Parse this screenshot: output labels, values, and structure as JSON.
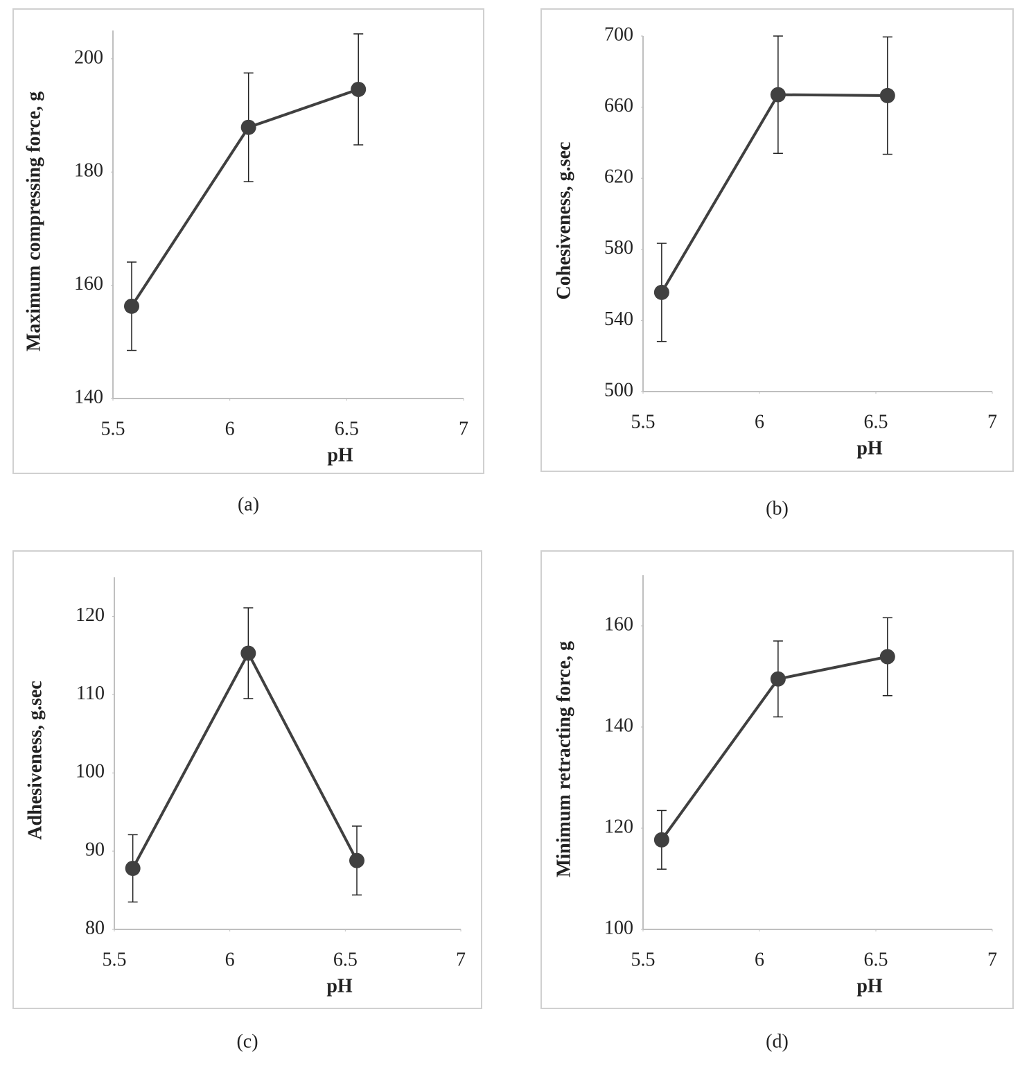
{
  "chart_data": [
    {
      "type": "line",
      "caption": "(a)",
      "xlabel": "pH",
      "ylabel": "Maximum compressing force, g",
      "x": [
        5.58,
        6.08,
        6.55
      ],
      "values": [
        156.3,
        187.9,
        194.6
      ],
      "errors": [
        7.8,
        9.6,
        9.8
      ],
      "color": "#404040",
      "xlim": [
        5.5,
        7
      ],
      "xticks": [
        5.5,
        6,
        6.5,
        7
      ],
      "ylim": [
        140,
        205
      ],
      "yticks": [
        140,
        160,
        180,
        200
      ]
    },
    {
      "type": "line",
      "caption": "(b)",
      "xlabel": "pH",
      "ylabel": "Cohesiveness, g.sec",
      "x": [
        5.58,
        6.08,
        6.55
      ],
      "values": [
        555.8,
        667,
        666.5
      ],
      "errors": [
        27.6,
        33,
        33
      ],
      "color": "#404040",
      "xlim": [
        5.5,
        7
      ],
      "xticks": [
        5.5,
        6,
        6.5,
        7
      ],
      "ylim": [
        500,
        700
      ],
      "yticks": [
        500,
        540,
        580,
        620,
        660,
        700
      ]
    },
    {
      "type": "line",
      "caption": "(c)",
      "xlabel": "pH",
      "ylabel": "Adhesiveness, g.sec",
      "x": [
        5.58,
        6.08,
        6.55
      ],
      "values": [
        87.8,
        115.3,
        88.8
      ],
      "errors": [
        4.3,
        5.8,
        4.4
      ],
      "color": "#404040",
      "xlim": [
        5.5,
        7
      ],
      "xticks": [
        5.5,
        6,
        6.5,
        7
      ],
      "ylim": [
        80,
        125
      ],
      "yticks": [
        80,
        90,
        100,
        110,
        120
      ]
    },
    {
      "type": "line",
      "caption": "(d)",
      "xlabel": "pH",
      "ylabel": "Minimum retracting force, g",
      "x": [
        5.58,
        6.08,
        6.55
      ],
      "values": [
        117.7,
        149.5,
        153.9
      ],
      "errors": [
        5.8,
        7.5,
        7.7
      ],
      "color": "#404040",
      "xlim": [
        5.5,
        7
      ],
      "xticks": [
        5.5,
        6,
        6.5,
        7
      ],
      "ylim": [
        100,
        170
      ],
      "yticks": [
        100,
        120,
        140,
        160
      ]
    }
  ]
}
